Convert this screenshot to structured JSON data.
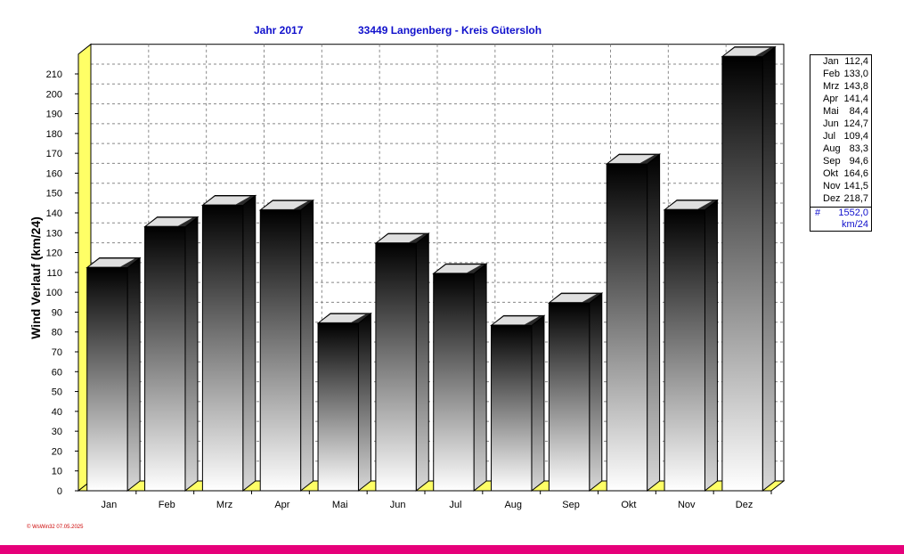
{
  "header": {
    "year_label": "Jahr  2017",
    "location": "33449 Langenberg - Kreis Gütersloh"
  },
  "chart_data": {
    "type": "bar",
    "categories": [
      "Jan",
      "Feb",
      "Mrz",
      "Apr",
      "Mai",
      "Jun",
      "Jul",
      "Aug",
      "Sep",
      "Okt",
      "Nov",
      "Dez"
    ],
    "values": [
      112.4,
      133.0,
      143.8,
      141.4,
      84.4,
      124.7,
      109.4,
      83.3,
      94.6,
      164.6,
      141.5,
      218.7
    ],
    "ylabel": "Wind Verlauf  (km/24)",
    "ylim": [
      0,
      220
    ],
    "yticks": [
      0,
      10,
      20,
      30,
      40,
      50,
      60,
      70,
      80,
      90,
      100,
      110,
      120,
      130,
      140,
      150,
      160,
      170,
      180,
      190,
      200,
      210
    ],
    "grid": true,
    "legend_position": "right",
    "colors": {
      "bar_dark": "#000000",
      "bar_light": "#ffffff",
      "floor": "#ffff66",
      "accent": "#1010cc"
    }
  },
  "legend": {
    "entries": [
      {
        "label": "Jan",
        "value": "112,4"
      },
      {
        "label": "Feb",
        "value": "133,0"
      },
      {
        "label": "Mrz",
        "value": "143,8"
      },
      {
        "label": "Apr",
        "value": "141,4"
      },
      {
        "label": "Mai",
        "value": "84,4"
      },
      {
        "label": "Jun",
        "value": "124,7"
      },
      {
        "label": "Jul",
        "value": "109,4"
      },
      {
        "label": "Aug",
        "value": "83,3"
      },
      {
        "label": "Sep",
        "value": "94,6"
      },
      {
        "label": "Okt",
        "value": "164,6"
      },
      {
        "label": "Nov",
        "value": "141,5"
      },
      {
        "label": "Dez",
        "value": "218,7"
      }
    ],
    "total_symbol": "#",
    "total_value": "1552,0",
    "total_unit": "km/24"
  },
  "footer": {
    "text": "© WsWin32  07.05.2025"
  }
}
